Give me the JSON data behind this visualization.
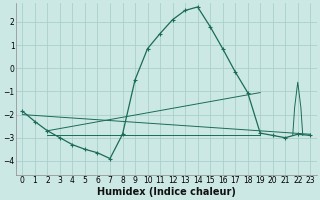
{
  "xlabel": "Humidex (Indice chaleur)",
  "bg_color": "#cce8e4",
  "grid_color": "#aacfcb",
  "line_color": "#1a6b5a",
  "xlim": [
    -0.5,
    23.5
  ],
  "ylim": [
    -4.6,
    2.8
  ],
  "yticks": [
    -4,
    -3,
    -2,
    -1,
    0,
    1,
    2
  ],
  "xticks": [
    0,
    1,
    2,
    3,
    4,
    5,
    6,
    7,
    8,
    9,
    10,
    11,
    12,
    13,
    14,
    15,
    16,
    17,
    18,
    19,
    20,
    21,
    22,
    23
  ],
  "main_curve_x": [
    0,
    1,
    2,
    3,
    4,
    5,
    6,
    7,
    8,
    9,
    10,
    11,
    12,
    13,
    14,
    15,
    16,
    17,
    18,
    19,
    20,
    21,
    22,
    23
  ],
  "main_curve_y": [
    -1.85,
    -2.3,
    -2.7,
    -3.0,
    -3.3,
    -3.5,
    -3.65,
    -3.9,
    -2.85,
    -0.5,
    0.85,
    1.5,
    2.1,
    2.5,
    2.65,
    1.8,
    0.85,
    -0.15,
    -1.05,
    -2.8,
    -2.9,
    -3.0,
    -2.85,
    -2.9
  ],
  "line1_x": [
    0,
    23
  ],
  "line1_y": [
    -2.0,
    -2.85
  ],
  "line2_x": [
    2,
    19
  ],
  "line2_y": [
    -2.7,
    -1.05
  ],
  "line3_x": [
    2,
    19
  ],
  "line3_y": [
    -2.9,
    -2.9
  ],
  "spike_x": [
    21.6,
    21.75,
    22.0,
    22.25,
    22.4
  ],
  "spike_y": [
    -2.9,
    -1.7,
    -0.6,
    -1.7,
    -2.9
  ],
  "xlabel_fontsize": 7,
  "tick_fontsize": 5.5
}
